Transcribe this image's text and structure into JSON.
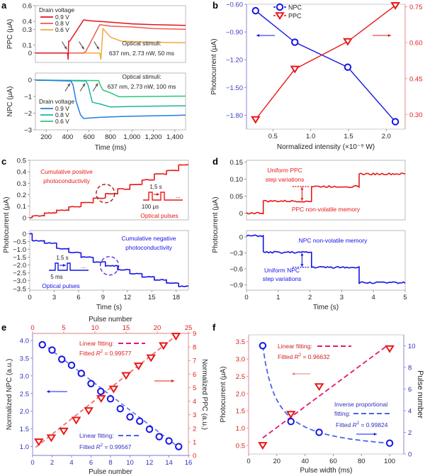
{
  "figure": {
    "panel_labels": [
      "a",
      "b",
      "c",
      "d",
      "e",
      "f"
    ]
  },
  "colors": {
    "red_dark": "#e0141e",
    "red_mid": "#f05a50",
    "orange": "#f5a83c",
    "blue_dark": "#1f7fe0",
    "teal": "#1eb4a0",
    "green": "#28c878",
    "blue": "#1414e6",
    "red": "#e81818",
    "pink": "#e6186e",
    "blue_dash": "#4a64e8",
    "axis_gray": "#999999",
    "purple_dash": "#6a2ae0",
    "darkred_dash": "#a01818"
  },
  "chart_data": [
    {
      "id": "a-top",
      "type": "line",
      "panel": "a",
      "ylabel": "PPC (μA)",
      "xlabel": "",
      "xlim": [
        100,
        1500
      ],
      "ylim": [
        -0.12,
        0.6
      ],
      "yticks": [
        0,
        0.1,
        0.3,
        0.4,
        0.6
      ],
      "ytick_labels": [
        "0",
        "0.1",
        "0.3",
        "0.4",
        "0.6"
      ],
      "legend_title": "Drain voltage",
      "annotation": [
        "Optical stimuli:",
        "637 nm, 2.73 nW, 50 ms"
      ],
      "series": [
        {
          "name": "0.9 V",
          "color": "#e0141e",
          "x": [
            100,
            300,
            400,
            405,
            410,
            415,
            420,
            550,
            600,
            800,
            1000,
            1200,
            1500
          ],
          "y": [
            0,
            0,
            0,
            -0.08,
            0.15,
            0.15,
            0.15,
            0.42,
            0.41,
            0.39,
            0.37,
            0.36,
            0.35
          ]
        },
        {
          "name": "0.8 V",
          "color": "#f05a50",
          "x": [
            100,
            300,
            550,
            570,
            700,
            800,
            1000,
            1200,
            1500
          ],
          "y": [
            0,
            0,
            0,
            0.02,
            0.36,
            0.34,
            0.33,
            0.31,
            0.3
          ]
        },
        {
          "name": "0.6 V",
          "color": "#f5a83c",
          "x": [
            100,
            300,
            700,
            710,
            730,
            800,
            900,
            1100,
            1300,
            1500
          ],
          "y": [
            0,
            0,
            0,
            -0.08,
            0.31,
            0.2,
            0.15,
            0.14,
            0.135,
            0.13
          ]
        }
      ],
      "arrows_x": [
        400,
        560,
        700
      ]
    },
    {
      "id": "a-bottom",
      "type": "line",
      "panel": "a",
      "ylabel": "NPC (μA)",
      "xlabel": "Time (ms)",
      "xlim": [
        100,
        1500
      ],
      "ylim": [
        -3,
        0.4
      ],
      "yticks": [
        0,
        -1,
        -2,
        -3
      ],
      "ytick_labels": [
        "0",
        "−1",
        "−2",
        "−3"
      ],
      "xticks": [
        200,
        400,
        600,
        800,
        1000,
        1200,
        1400
      ],
      "xtick_labels": [
        "200",
        "400",
        "600",
        "800",
        "1,000",
        "1,200",
        "1,400"
      ],
      "legend_title": "Drain voltage",
      "annotation": [
        "Optical stimuli:",
        "637 nm, 2.73 nW, 100 ms"
      ],
      "series": [
        {
          "name": "0.9 V",
          "color": "#1f7fe0",
          "x": [
            100,
            300,
            430,
            450,
            480,
            520,
            550,
            700,
            900,
            1100,
            1300,
            1500
          ],
          "y": [
            -0.02,
            -0.05,
            -0.08,
            -0.3,
            -1.3,
            -2.1,
            -2.32,
            -2.25,
            -2.2,
            -2.17,
            -2.15,
            -2.12
          ]
        },
        {
          "name": "0.8 V",
          "color": "#1eb4a0",
          "x": [
            100,
            300,
            570,
            590,
            630,
            700,
            800,
            1000,
            1200,
            1500
          ],
          "y": [
            -0.02,
            -0.04,
            -0.08,
            -0.3,
            -1.35,
            -1.45,
            -1.63,
            -1.6,
            -1.58,
            -1.56
          ]
        },
        {
          "name": "0.6 V",
          "color": "#28c878",
          "x": [
            100,
            300,
            690,
            710,
            730,
            800,
            880,
            1000,
            1200,
            1500
          ],
          "y": [
            -0.02,
            -0.03,
            -0.05,
            -0.4,
            -0.62,
            -0.78,
            -1.02,
            -1.01,
            -1.0,
            -0.98
          ]
        }
      ],
      "arrows_x": [
        430,
        570,
        690
      ]
    },
    {
      "id": "b",
      "type": "line",
      "panel": "b",
      "ylabel": "Photocurrent (μA)",
      "xlabel": "Normalized intensity (×10⁻⁹ W)",
      "xlim": [
        0.15,
        2.25
      ],
      "xticks": [
        0.5,
        1.0,
        1.5,
        2.0
      ],
      "xtick_labels": [
        "0.5",
        "1.0",
        "1.5",
        "2.0"
      ],
      "ylim_left": [
        -1.95,
        -0.6
      ],
      "yticks_left": [
        -0.6,
        -0.9,
        -1.2,
        -1.5,
        -1.8
      ],
      "ytick_labels_left": [
        "−0.60",
        "−0.90",
        "−1.20",
        "−1.50",
        "−1.80"
      ],
      "ylim_right": [
        0.24,
        0.76
      ],
      "yticks_right": [
        0.3,
        0.45,
        0.6,
        0.75
      ],
      "ytick_labels_right": [
        "0.30",
        "0.45",
        "0.60",
        "0.75"
      ],
      "series": [
        {
          "name": "NPC",
          "axis": "left",
          "marker": "circle",
          "color": "#1414e6",
          "x": [
            0.27,
            0.79,
            1.49,
            2.12
          ],
          "y": [
            -0.67,
            -1.01,
            -1.28,
            -1.87
          ]
        },
        {
          "name": "PPC",
          "axis": "right",
          "marker": "triangle-down",
          "color": "#e81818",
          "x": [
            0.27,
            0.79,
            1.49,
            2.12
          ],
          "y": [
            0.28,
            0.49,
            0.605,
            0.755
          ]
        }
      ],
      "legend_position": "top-left"
    },
    {
      "id": "c-top",
      "type": "line",
      "panel": "c",
      "ylabel": "Photocurrent (μA)",
      "xlim": [
        0,
        19.5
      ],
      "ylim": [
        -0.02,
        0.5
      ],
      "yticks": [
        0,
        0.1,
        0.2,
        0.3,
        0.4,
        0.5
      ],
      "ytick_labels": [
        "0",
        "0.1",
        "0.2",
        "0.3",
        "0.4",
        "0.5"
      ],
      "annotation": [
        "Cumulative positive",
        "photoconductivity"
      ],
      "inset_labels": {
        "period": "1.5 s",
        "width": "100 μs",
        "caption": "Optical pulses",
        "dots": "..."
      },
      "series": [
        {
          "name": "PPC",
          "color": "#e81818",
          "step_times": [
            0,
            0.3,
            1.8,
            3.3,
            4.8,
            6.3,
            7.8,
            9.3,
            10.8,
            12.3,
            13.8,
            15.3,
            16.8,
            18.3
          ],
          "step_levels": [
            0,
            0.015,
            0.04,
            0.065,
            0.095,
            0.13,
            0.17,
            0.21,
            0.25,
            0.29,
            0.33,
            0.38,
            0.41,
            0.46
          ]
        }
      ],
      "highlight_circle_x": 9.3
    },
    {
      "id": "c-bottom",
      "type": "line",
      "panel": "c",
      "ylabel": "",
      "xlabel": "Time (s)",
      "xlim": [
        0,
        19.5
      ],
      "ylim": [
        -3.6,
        0.2
      ],
      "yticks": [
        0,
        -0.5,
        -1.0,
        -1.5,
        -2.0,
        -2.5,
        -3.0,
        -3.5
      ],
      "ytick_labels": [
        "0",
        "−0.5",
        "−1.0",
        "−1.5",
        "−2.0",
        "−2.5",
        "−3.0",
        "−3.5"
      ],
      "xticks": [
        0,
        3,
        6,
        9,
        12,
        15,
        18
      ],
      "xtick_labels": [
        "0",
        "3",
        "6",
        "9",
        "12",
        "15",
        "18"
      ],
      "annotation": [
        "Cumulative negative",
        "photoconductivity"
      ],
      "inset_labels": {
        "period": "1.5 s",
        "width": "5 ms",
        "caption": "Optical pulses",
        "dots": "..."
      },
      "series": [
        {
          "name": "NPC",
          "color": "#1414e6",
          "step_times": [
            0,
            0.3,
            1.8,
            3.3,
            4.8,
            6.3,
            7.8,
            9.3,
            10.8,
            12.3,
            13.8,
            15.3,
            16.8,
            18.3
          ],
          "step_levels": [
            0,
            -0.45,
            -0.6,
            -0.95,
            -1.2,
            -1.5,
            -1.8,
            -2.05,
            -2.3,
            -2.55,
            -2.75,
            -2.95,
            -3.15,
            -3.35
          ]
        }
      ],
      "highlight_circle_x": 9.8
    },
    {
      "id": "d-top",
      "type": "line",
      "panel": "d",
      "ylabel": "Photocurrent (μA)",
      "xlim": [
        0,
        5
      ],
      "ylim": [
        -0.02,
        0.155
      ],
      "yticks": [
        0,
        0.05,
        0.1,
        0.15
      ],
      "ytick_labels": [
        "0",
        "0.05",
        "0.10",
        "0.15"
      ],
      "annotation": [
        "Uniform PPC",
        "step variations"
      ],
      "annotation2": "PPC non-volatile memory",
      "series": [
        {
          "name": "PPC",
          "color": "#e81818",
          "step_times": [
            0,
            0.53,
            2.05,
            3.55
          ],
          "step_levels": [
            0,
            0.035,
            0.078,
            0.115
          ]
        }
      ]
    },
    {
      "id": "d-bottom",
      "type": "line",
      "panel": "d",
      "xlabel": "Time (s)",
      "xlim": [
        0,
        5
      ],
      "ylim": [
        -1.0,
        0.12
      ],
      "yticks": [
        0,
        -0.3,
        -0.6,
        -0.9
      ],
      "ytick_labels": [
        "0",
        "−0.3",
        "−0.6",
        "−0.9"
      ],
      "xticks": [
        0,
        1,
        2,
        3,
        4,
        5
      ],
      "xtick_labels": [
        "0",
        "1",
        "2",
        "3",
        "4",
        "5"
      ],
      "annotation": [
        "Uniform NPC",
        "step variations"
      ],
      "annotation2": "NPC non-volatile memory",
      "series": [
        {
          "name": "NPC",
          "color": "#1414e6",
          "step_times": [
            0,
            0.53,
            2.05,
            3.55
          ],
          "step_levels": [
            0.02,
            -0.29,
            -0.57,
            -0.86
          ]
        }
      ]
    },
    {
      "id": "e",
      "type": "scatter",
      "panel": "e",
      "xlabel": "Pulse number",
      "xlabel_top": "Pulse number",
      "ylabel_left": "Normalized NPC (a.u.)",
      "ylabel_right": "Normalized PPC (a.u.)",
      "xlim_bottom": [
        0,
        16
      ],
      "xticks_bottom": [
        0,
        2,
        4,
        6,
        8,
        10,
        12,
        14,
        16
      ],
      "xlim_top": [
        0,
        25
      ],
      "xticks_top": [
        0,
        5,
        10,
        15,
        20,
        25
      ],
      "ylim_left": [
        0.75,
        4.2
      ],
      "yticks_left": [
        1.0,
        1.5,
        2.0,
        2.5,
        3.0,
        3.5,
        4.0
      ],
      "ytick_labels_left": [
        "1.0",
        "1.5",
        "2.0",
        "2.5",
        "3.0",
        "3.5",
        "4.0"
      ],
      "ylim_right": [
        0,
        9
      ],
      "yticks_right": [
        0,
        1,
        2,
        3,
        4,
        5,
        6,
        7,
        8,
        9
      ],
      "series": [
        {
          "name": "NPC",
          "axis": "left/bottom",
          "marker": "circle",
          "color": "#1414e6",
          "x": [
            1,
            2,
            3,
            4,
            5,
            6,
            7,
            8,
            9,
            10,
            11,
            12,
            13,
            14,
            15
          ],
          "y": [
            3.88,
            3.73,
            3.47,
            3.3,
            3.07,
            2.78,
            2.56,
            2.35,
            2.07,
            1.84,
            1.72,
            1.49,
            1.28,
            1.16,
            1.0
          ]
        },
        {
          "name": "PPC",
          "axis": "right/top",
          "marker": "triangle-down",
          "color": "#e81818",
          "x": [
            1,
            3,
            5,
            7,
            9,
            11,
            13,
            15,
            17,
            19,
            21,
            23
          ],
          "y": [
            1.0,
            1.3,
            1.8,
            2.6,
            3.3,
            4.2,
            4.9,
            5.9,
            6.6,
            7.2,
            8.1,
            8.8
          ]
        }
      ],
      "fits": [
        {
          "name": "Linear fitting:",
          "r2_label": "Fitted R² = 0.99577",
          "r2_prefix": "Fitted ",
          "r2_italic": "R",
          "r2_sup": "2",
          "r2_value": " = 0.99577",
          "color": "#e6186e",
          "for": "PPC",
          "x": [
            0.5,
            23.5
          ],
          "y": [
            0.6,
            9.0
          ]
        },
        {
          "name": "Linear fitting:",
          "r2_label": "Fitted R² = 0.99567",
          "r2_prefix": "Fitted ",
          "r2_italic": "R",
          "r2_sup": "2",
          "r2_value": " = 0.99567",
          "color": "#4a64e8",
          "for": "NPC",
          "x": [
            1,
            15
          ],
          "y": [
            3.92,
            0.98
          ]
        }
      ]
    },
    {
      "id": "f",
      "type": "scatter",
      "panel": "f",
      "xlabel": "Pulse width (ms)",
      "ylabel_left": "Photocurrent (μA)",
      "ylabel_right": "Pulse number",
      "xlim": [
        0,
        110
      ],
      "xticks": [
        0,
        20,
        40,
        60,
        80,
        100
      ],
      "ylim_left": [
        0.25,
        3.7
      ],
      "yticks_left": [
        0.5,
        1.0,
        1.5,
        2.0,
        2.5,
        3.0,
        3.5
      ],
      "ytick_labels_left": [
        "0.5",
        "1.0",
        "1.5",
        "2.0",
        "2.5",
        "3.0",
        "3.5"
      ],
      "ylim_right": [
        0,
        11
      ],
      "yticks_right": [
        0,
        2,
        4,
        6,
        8,
        10
      ],
      "series": [
        {
          "name": "Photocurrent",
          "axis": "left",
          "marker": "triangle-down",
          "color": "#e81818",
          "x": [
            10,
            30,
            50,
            100
          ],
          "y": [
            0.5,
            1.4,
            2.2,
            3.3
          ]
        },
        {
          "name": "Pulse number",
          "axis": "right",
          "marker": "circle",
          "color": "#1414e6",
          "x": [
            10,
            30,
            50,
            100
          ],
          "y": [
            10,
            3,
            2,
            1
          ]
        }
      ],
      "fits": [
        {
          "name": "Linear fitting:",
          "r2_prefix": "Fitted ",
          "r2_italic": "R",
          "r2_sup": "2",
          "r2_value": " = 0.96632",
          "color": "#e6186e",
          "for": "Photocurrent",
          "kind": "linear"
        },
        {
          "name1": "Inverse proportional",
          "name2": "fitting:",
          "r2_prefix": "Fitted ",
          "r2_italic": "R",
          "r2_sup": "2",
          "r2_value": " = 0.99824",
          "color": "#4a64e8",
          "for": "Pulse number",
          "kind": "inverse"
        }
      ]
    }
  ]
}
